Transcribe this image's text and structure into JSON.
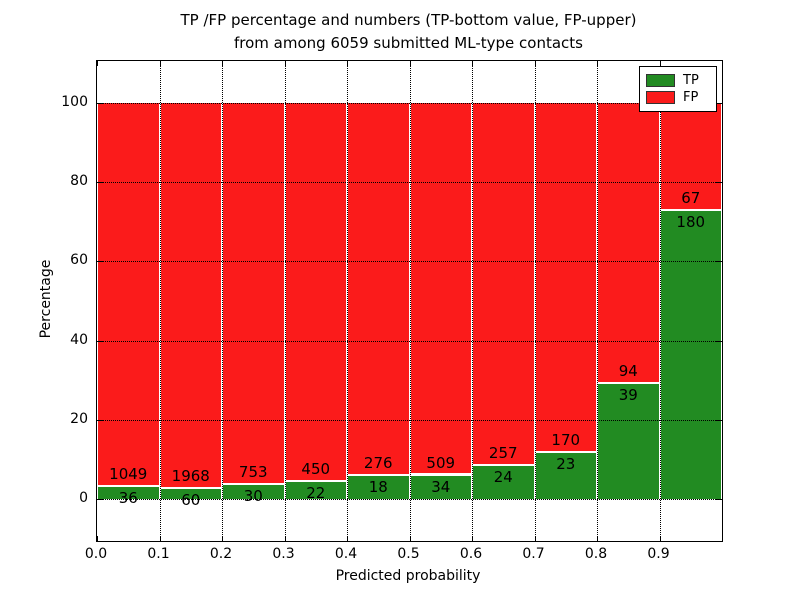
{
  "title": {
    "line1": "TP /FP percentage and numbers (TP-bottom value, FP-upper)",
    "line2": "from among 6059 submitted ML-type contacts"
  },
  "chart_data": {
    "type": "bar",
    "stacked": true,
    "normalized": "each bin stacked to 100%",
    "title": "TP /FP percentage and numbers (TP-bottom value, FP-upper) from among 6059 submitted ML-type contacts",
    "xlabel": "Predicted probability",
    "ylabel": "Percentage",
    "categories": [
      "0.0",
      "0.1",
      "0.2",
      "0.3",
      "0.4",
      "0.5",
      "0.6",
      "0.7",
      "0.8",
      "0.9"
    ],
    "bin_width": 0.1,
    "series": [
      {
        "name": "TP",
        "color": "#228B22",
        "counts": [
          36,
          60,
          30,
          22,
          18,
          34,
          24,
          23,
          39,
          180
        ]
      },
      {
        "name": "FP",
        "color": "#fb1b1b",
        "counts": [
          1049,
          1968,
          753,
          450,
          276,
          509,
          257,
          170,
          94,
          67
        ]
      }
    ],
    "total_contacts": 6059,
    "xticks": [
      "0.0",
      "0.1",
      "0.2",
      "0.3",
      "0.4",
      "0.5",
      "0.6",
      "0.7",
      "0.8",
      "0.9"
    ],
    "yticks": [
      0,
      20,
      40,
      60,
      80,
      100
    ],
    "xlim": [
      0.0,
      1.0
    ],
    "ylim": [
      -10.5,
      110.5
    ],
    "grid": "dotted both axes",
    "legend": {
      "position": "upper-right",
      "entries": [
        {
          "label": "TP",
          "color": "#228B22"
        },
        {
          "label": "FP",
          "color": "#fb1b1b"
        }
      ]
    }
  }
}
